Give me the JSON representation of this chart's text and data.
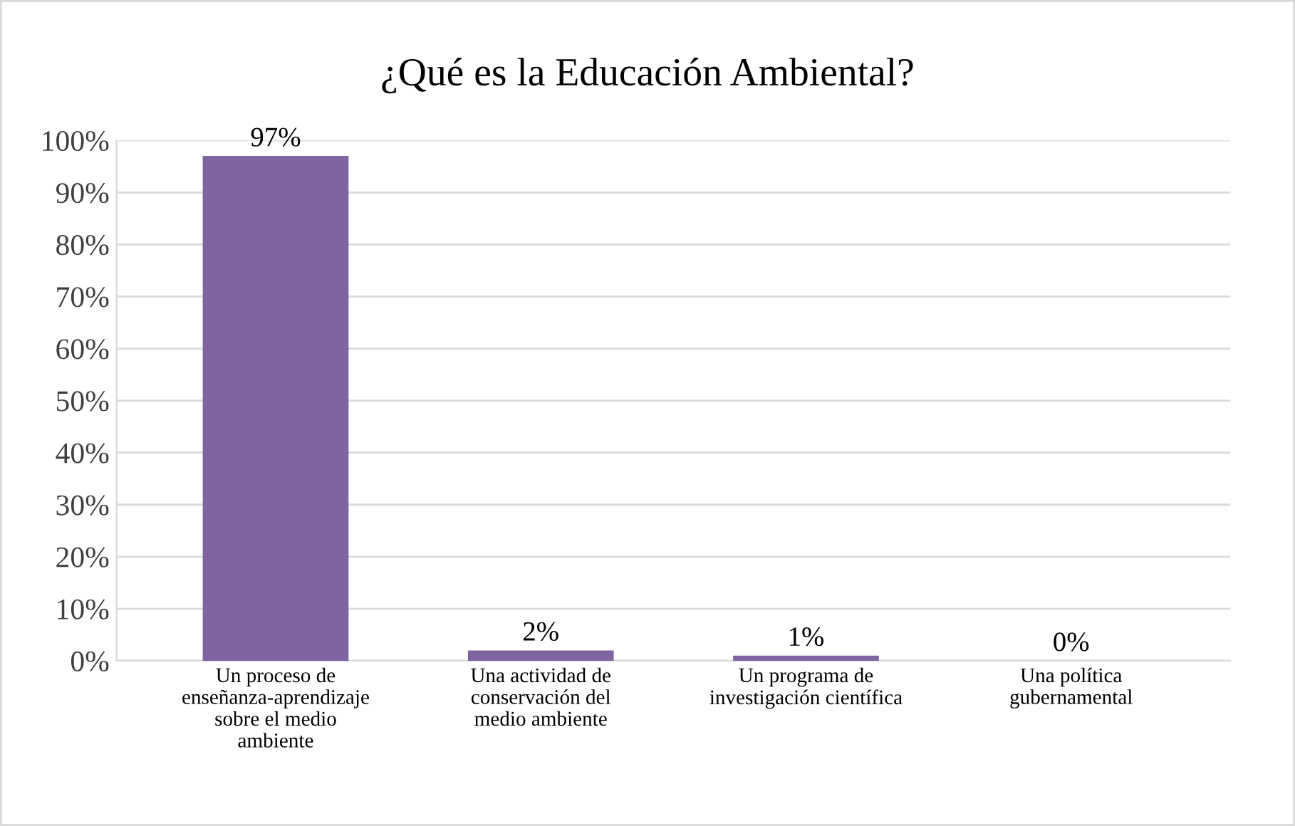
{
  "chart_data": {
    "type": "bar",
    "title": "¿Qué es la Educación Ambiental?",
    "categories": [
      "Un proceso de\nenseñanza-aprendizaje\nsobre el medio\nambiente",
      "Una actividad de\nconservación del\nmedio ambiente",
      "Un programa de\ninvestigación científica",
      "Una política\ngubernamental"
    ],
    "values": [
      97,
      2,
      1,
      0
    ],
    "value_labels": [
      "97%",
      "2%",
      "1%",
      "0%"
    ],
    "color": "#8064a2",
    "ylim": [
      0,
      100
    ],
    "yticks": [
      {
        "value": 0,
        "label": "0%"
      },
      {
        "value": 10,
        "label": "10%"
      },
      {
        "value": 20,
        "label": "20%"
      },
      {
        "value": 30,
        "label": "30%"
      },
      {
        "value": 40,
        "label": "40%"
      },
      {
        "value": 50,
        "label": "50%"
      },
      {
        "value": 60,
        "label": "60%"
      },
      {
        "value": 70,
        "label": "70%"
      },
      {
        "value": 80,
        "label": "80%"
      },
      {
        "value": 90,
        "label": "90%"
      },
      {
        "value": 100,
        "label": "100%"
      }
    ],
    "grid": "y"
  }
}
